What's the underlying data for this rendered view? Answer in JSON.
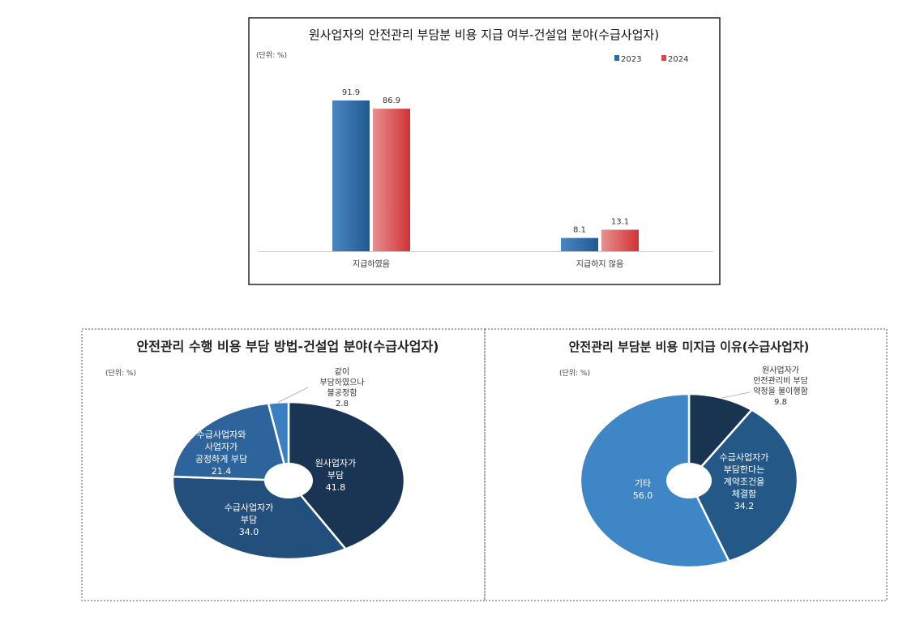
{
  "chart_data": [
    {
      "type": "bar",
      "title": "원사업자의 안전관리 부담분 비용 지급 여부-건설업 분야(수급사업자)",
      "unit_note": "(단위: %)",
      "categories": [
        "지급하였음",
        "지급하지 않음"
      ],
      "series": [
        {
          "name": "2023",
          "values": [
            91.9,
            8.1
          ],
          "color": "#2e6aa0"
        },
        {
          "name": "2024",
          "values": [
            86.9,
            13.1
          ],
          "color": "#d9474a"
        }
      ],
      "ylim": [
        0,
        100
      ],
      "legend": "top-right",
      "grid": false
    },
    {
      "type": "pie",
      "donut": true,
      "title": "안전관리 수행 비용 부담 방법-건설업 분야(수급사업자)",
      "unit_note": "(단위: %)",
      "slices": [
        {
          "label": [
            "원사업자가",
            "부담"
          ],
          "value": 41.8,
          "color": "#1a3553"
        },
        {
          "label": [
            "수급사업자가",
            "부담"
          ],
          "value": 34.0,
          "color": "#234f7c"
        },
        {
          "label": [
            "수급사업자와",
            "사업자가",
            "공정하게 부담"
          ],
          "value": 21.4,
          "color": "#2e649c"
        },
        {
          "label": [
            "같이",
            "부담하였으나",
            "불공정함"
          ],
          "value": 2.8,
          "color": "#3a7fc0"
        }
      ]
    },
    {
      "type": "pie",
      "donut": true,
      "title": "안전관리 부담분 비용 미지급 이유(수급사업자)",
      "unit_note": "(단위: %)",
      "slices": [
        {
          "label": [
            "원사업자가",
            "안전관리비 부담",
            "약정을 불이행함"
          ],
          "value": 9.8,
          "color": "#183450"
        },
        {
          "label": [
            "수급사업자가",
            "부담한다는",
            "계약조건을",
            "체결함"
          ],
          "value": 34.2,
          "color": "#245886"
        },
        {
          "label": [
            "기타"
          ],
          "value": 56.0,
          "color": "#3f86c6"
        }
      ]
    }
  ]
}
